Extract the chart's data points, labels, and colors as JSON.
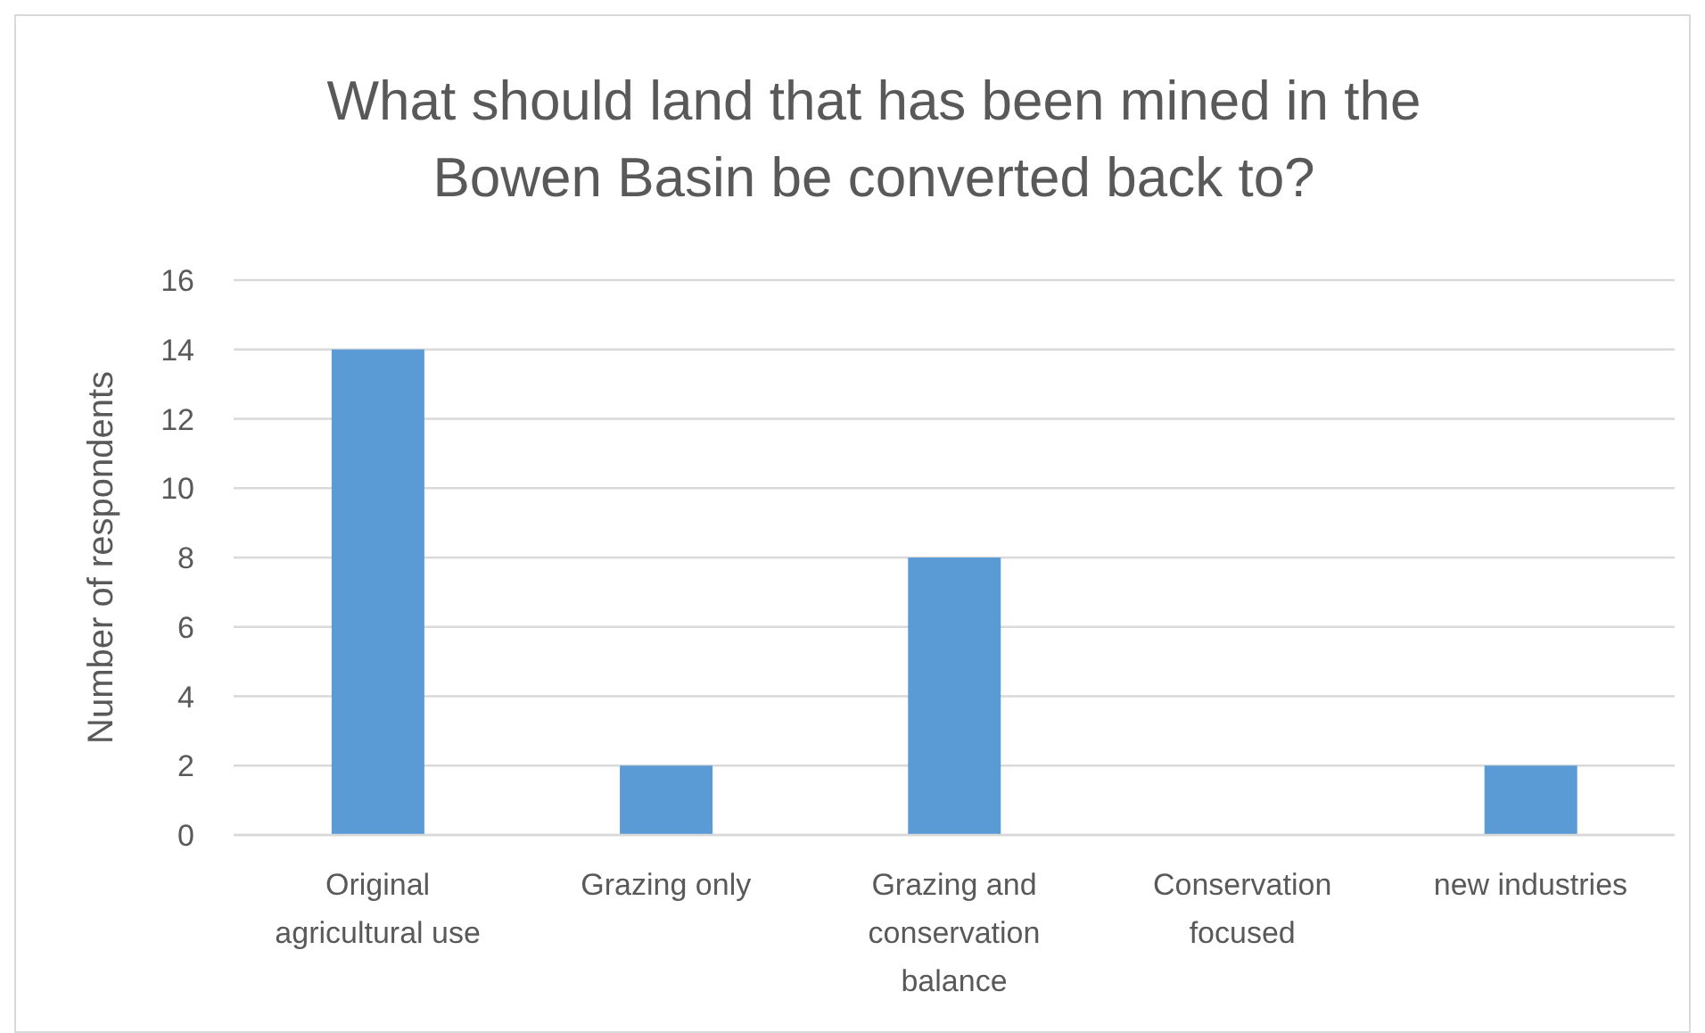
{
  "chart_data": {
    "type": "bar",
    "title": "What should land that has been mined in the Bowen Basin be converted back to?",
    "ylabel": "Number of respondents",
    "categories": [
      "Original agricultural use",
      "Grazing only",
      "Grazing and conservation balance",
      "Conservation focused",
      "new industries"
    ],
    "values": [
      14,
      2,
      8,
      0,
      2
    ],
    "color": "#5b9bd5",
    "ylim": [
      0,
      16
    ],
    "yticks": [
      0,
      2,
      4,
      6,
      8,
      10,
      12,
      14,
      16
    ],
    "grid": "y"
  }
}
